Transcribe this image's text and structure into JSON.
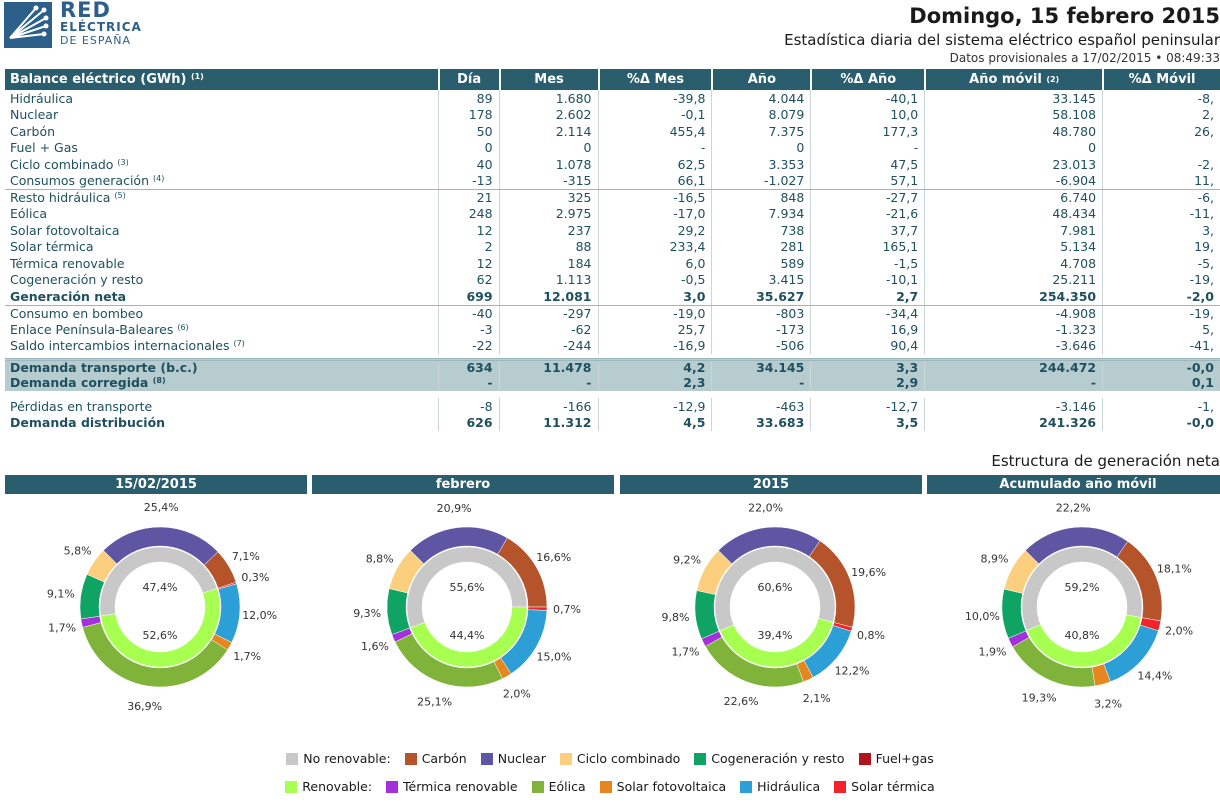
{
  "brand": {
    "name": "RED",
    "line2": "ELÉCTRICA",
    "line3": "DE ESPAÑA"
  },
  "header": {
    "date": "Domingo, 15 febrero 2015",
    "title": "Estadística diaria del sistema eléctrico español peninsular",
    "provisional": "Datos provisionales a 17/02/2015 • 08:49:33"
  },
  "table": {
    "columns": [
      "Balance eléctrico (GWh)",
      "Día",
      "Mes",
      "%Δ Mes",
      "Año",
      "%Δ Año",
      "Año móvil",
      "%Δ Móvil"
    ],
    "title_note": "(1)",
    "anio_movil_note": "(2)",
    "rows": [
      {
        "label": "Hidráulica",
        "note": "",
        "vals": [
          "89",
          "1.680",
          "-39,8",
          "4.044",
          "-40,1",
          "33.145",
          "-8,"
        ]
      },
      {
        "label": "Nuclear",
        "note": "",
        "vals": [
          "178",
          "2.602",
          "-0,1",
          "8.079",
          "10,0",
          "58.108",
          "2,"
        ]
      },
      {
        "label": "Carbón",
        "note": "",
        "vals": [
          "50",
          "2.114",
          "455,4",
          "7.375",
          "177,3",
          "48.780",
          "26,"
        ]
      },
      {
        "label": "Fuel + Gas",
        "note": "",
        "vals": [
          "0",
          "0",
          "-",
          "0",
          "-",
          "0",
          ""
        ]
      },
      {
        "label": "Ciclo combinado",
        "note": "(3)",
        "vals": [
          "40",
          "1.078",
          "62,5",
          "3.353",
          "47,5",
          "23.013",
          "-2,"
        ]
      },
      {
        "label": "Consumos generación",
        "note": "(4)",
        "vals": [
          "-13",
          "-315",
          "66,1",
          "-1.027",
          "57,1",
          "-6.904",
          "11,"
        ]
      },
      {
        "label": "Resto hidráulica",
        "note": "(5)",
        "vals": [
          "21",
          "325",
          "-16,5",
          "848",
          "-27,7",
          "6.740",
          "-6,"
        ]
      },
      {
        "label": "Eólica",
        "note": "",
        "vals": [
          "248",
          "2.975",
          "-17,0",
          "7.934",
          "-21,6",
          "48.434",
          "-11,"
        ]
      },
      {
        "label": "Solar fotovoltaica",
        "note": "",
        "vals": [
          "12",
          "237",
          "29,2",
          "738",
          "37,7",
          "7.981",
          "3,"
        ]
      },
      {
        "label": "Solar térmica",
        "note": "",
        "vals": [
          "2",
          "88",
          "233,4",
          "281",
          "165,1",
          "5.134",
          "19,"
        ]
      },
      {
        "label": "Térmica renovable",
        "note": "",
        "vals": [
          "12",
          "184",
          "6,0",
          "589",
          "-1,5",
          "4.708",
          "-5,"
        ]
      },
      {
        "label": "Cogeneración y resto",
        "note": "",
        "vals": [
          "62",
          "1.113",
          "-0,5",
          "3.415",
          "-10,1",
          "25.211",
          "-19,"
        ]
      },
      {
        "label": "Generación neta",
        "note": "",
        "vals": [
          "699",
          "12.081",
          "3,0",
          "35.627",
          "2,7",
          "254.350",
          "-2,0"
        ]
      },
      {
        "label": "Consumo en bombeo",
        "note": "",
        "vals": [
          "-40",
          "-297",
          "-19,0",
          "-803",
          "-34,4",
          "-4.908",
          "-19,"
        ]
      },
      {
        "label": "Enlace Península-Baleares",
        "note": "(6)",
        "vals": [
          "-3",
          "-62",
          "25,7",
          "-173",
          "16,9",
          "-1.323",
          "5,"
        ]
      },
      {
        "label": "Saldo intercambios internacionales",
        "note": "(7)",
        "vals": [
          "-22",
          "-244",
          "-16,9",
          "-506",
          "90,4",
          "-3.646",
          "-41,"
        ]
      },
      {
        "label": "Demanda transporte (b.c.)",
        "note": "",
        "vals": [
          "634",
          "11.478",
          "4,2",
          "34.145",
          "3,3",
          "244.472",
          "-0,0"
        ]
      },
      {
        "label": "Demanda corregida",
        "note": "(8)",
        "vals": [
          "-",
          "-",
          "2,3",
          "-",
          "2,9",
          "-",
          "0,1"
        ]
      },
      {
        "label": "Pérdidas en transporte",
        "note": "",
        "vals": [
          "-8",
          "-166",
          "-12,9",
          "-463",
          "-12,7",
          "-3.146",
          "-1,"
        ]
      },
      {
        "label": "Demanda distribución",
        "note": "",
        "vals": [
          "626",
          "11.312",
          "4,5",
          "33.683",
          "3,5",
          "241.326",
          "-0,0"
        ]
      }
    ]
  },
  "structure": {
    "title": "Estructura de generación neta",
    "panels": [
      {
        "title": "15/02/2015",
        "inner_nr": "47,4%",
        "inner_r": "52,6%",
        "nr": 47.4,
        "outer": {
          "carbon": 7.1,
          "nuclear": 25.4,
          "ciclo": 5.8,
          "cogen": 9.1,
          "fuel": 0.0,
          "termica_r": 1.7,
          "eolica": 36.9,
          "fotov": 1.7,
          "hidraulica": 12.0,
          "solar_t": 0.3
        },
        "labels": {
          "nuclear": "25,4%",
          "carbon": "7,1%",
          "solar_t": "0,3%",
          "hidraulica": "12,0%",
          "fotov": "1,7%",
          "eolica": "36,9%",
          "termica_r": "1,7%",
          "cogen": "9,1%",
          "ciclo": "5,8%"
        }
      },
      {
        "title": "febrero",
        "inner_nr": "55,6%",
        "inner_r": "44,4%",
        "nr": 55.6,
        "outer": {
          "carbon": 16.6,
          "nuclear": 20.9,
          "ciclo": 8.8,
          "cogen": 9.3,
          "fuel": 0.0,
          "termica_r": 1.6,
          "eolica": 25.1,
          "fotov": 2.0,
          "hidraulica": 15.0,
          "solar_t": 0.7
        },
        "labels": {
          "nuclear": "20,9%",
          "carbon": "16,6%",
          "solar_t": "0,7%",
          "hidraulica": "15,0%",
          "fotov": "2,0%",
          "eolica": "25,1%",
          "termica_r": "1,6%",
          "cogen": "9,3%",
          "ciclo": "8,8%"
        }
      },
      {
        "title": "2015",
        "inner_nr": "60,6%",
        "inner_r": "39,4%",
        "nr": 60.6,
        "outer": {
          "carbon": 19.6,
          "nuclear": 22.0,
          "ciclo": 9.2,
          "cogen": 9.8,
          "fuel": 0.0,
          "termica_r": 1.7,
          "eolica": 22.6,
          "fotov": 2.1,
          "hidraulica": 12.2,
          "solar_t": 0.8
        },
        "labels": {
          "nuclear": "22,0%",
          "carbon": "19,6%",
          "solar_t": "0,8%",
          "hidraulica": "12,2%",
          "fotov": "2,1%",
          "eolica": "22,6%",
          "termica_r": "1,7%",
          "cogen": "9,8%",
          "ciclo": "9,2%"
        }
      },
      {
        "title": "Acumulado año móvil",
        "inner_nr": "59,2%",
        "inner_r": "40,8%",
        "nr": 59.2,
        "outer": {
          "carbon": 18.1,
          "nuclear": 22.2,
          "ciclo": 8.9,
          "cogen": 10.0,
          "fuel": 0.0,
          "termica_r": 1.9,
          "eolica": 19.3,
          "fotov": 3.2,
          "hidraulica": 14.4,
          "solar_t": 2.0
        },
        "labels": {
          "nuclear": "22,2%",
          "carbon": "18,1%",
          "solar_t": "2,0%",
          "hidraulica": "14,4%",
          "fotov": "3,2%",
          "eolica": "19,3%",
          "termica_r": "1,9%",
          "cogen": "10,0%",
          "ciclo": "8,9%"
        }
      }
    ]
  },
  "legend": {
    "row1": [
      {
        "label": "No renovable:",
        "color": "#c8c8c8"
      },
      {
        "label": "Carbón",
        "color": "#b5532b"
      },
      {
        "label": "Nuclear",
        "color": "#5e55a3"
      },
      {
        "label": "Ciclo combinado",
        "color": "#fbcf7e"
      },
      {
        "label": "Cogeneración y resto",
        "color": "#0fa364"
      },
      {
        "label": "Fuel+gas",
        "color": "#b1141e"
      }
    ],
    "row2": [
      {
        "label": "Renovable:",
        "color": "#a7ff4f"
      },
      {
        "label": "Térmica renovable",
        "color": "#a430dc"
      },
      {
        "label": "Eólica",
        "color": "#80b33a"
      },
      {
        "label": "Solar fotovoltaica",
        "color": "#e6861f"
      },
      {
        "label": "Hidráulica",
        "color": "#2d9fd7"
      },
      {
        "label": "Solar térmica",
        "color": "#f4222a"
      }
    ]
  },
  "colors": {
    "carbon": "#b5532b",
    "nuclear": "#5e55a3",
    "ciclo": "#fbcf7e",
    "cogen": "#0fa364",
    "fuel": "#b1141e",
    "termica_r": "#a430dc",
    "eolica": "#80b33a",
    "fotov": "#e6861f",
    "hidraulica": "#2d9fd7",
    "solar_t": "#f4222a",
    "no_renovable": "#c8c8c8",
    "renovable": "#a7ff4f"
  }
}
